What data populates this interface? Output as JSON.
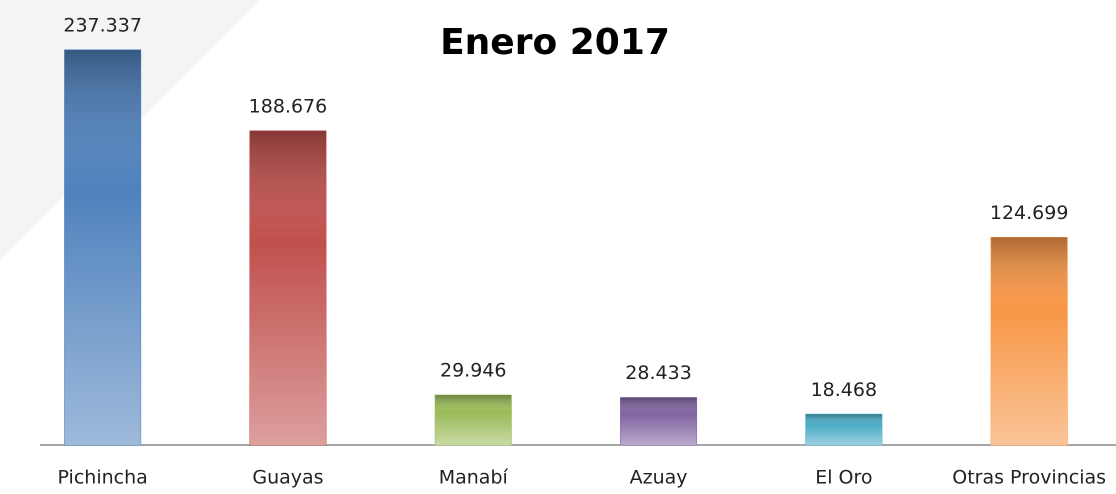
{
  "chart_data": {
    "type": "bar",
    "title": "Enero 2017",
    "categories": [
      "Pichincha",
      "Guayas",
      "Manabí",
      "Azuay",
      "El Oro",
      "Otras Provincias"
    ],
    "values": [
      237337,
      188676,
      29946,
      28433,
      18468,
      124699
    ],
    "value_labels": [
      "237.337",
      "188.676",
      "29.946",
      "28.433",
      "18.468",
      "124.699"
    ],
    "colors": [
      "#4f81bd",
      "#c0504d",
      "#9bbb59",
      "#8064a2",
      "#4bacc6",
      "#f79646"
    ]
  }
}
